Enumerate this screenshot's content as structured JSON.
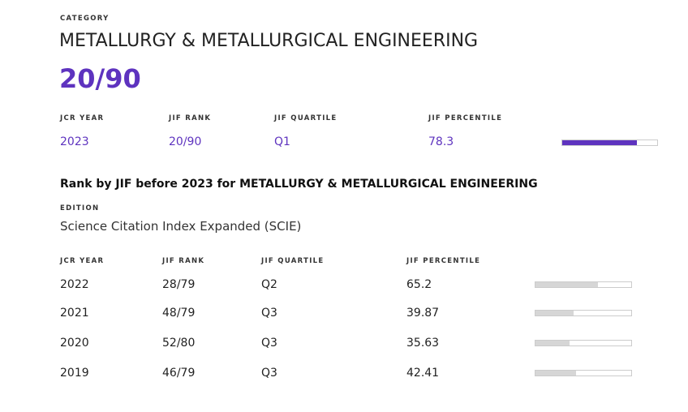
{
  "header": {
    "label": "CATEGORY",
    "title": "METALLURGY & METALLURGICAL ENGINEERING",
    "rank": "20/90"
  },
  "current": {
    "columns": [
      "JCR YEAR",
      "JIF RANK",
      "JIF QUARTILE",
      "JIF PERCENTILE"
    ],
    "row": {
      "year": "2023",
      "rank": "20/90",
      "quartile": "Q1",
      "percentile": 78.3
    }
  },
  "history": {
    "title": "Rank by JIF before 2023 for METALLURGY & METALLURGICAL ENGINEERING",
    "edition_label": "EDITION",
    "edition": "Science Citation Index Expanded (SCIE)",
    "columns": [
      "JCR YEAR",
      "JIF RANK",
      "JIF QUARTILE",
      "JIF PERCENTILE"
    ],
    "rows": [
      {
        "year": "2022",
        "rank": "28/79",
        "quartile": "Q2",
        "percentile": 65.2
      },
      {
        "year": "2021",
        "rank": "48/79",
        "quartile": "Q3",
        "percentile": 39.87
      },
      {
        "year": "2020",
        "rank": "52/80",
        "quartile": "Q3",
        "percentile": 35.63
      },
      {
        "year": "2019",
        "rank": "46/79",
        "quartile": "Q3",
        "percentile": 42.41
      }
    ]
  },
  "percentile_range": [
    0,
    100
  ]
}
